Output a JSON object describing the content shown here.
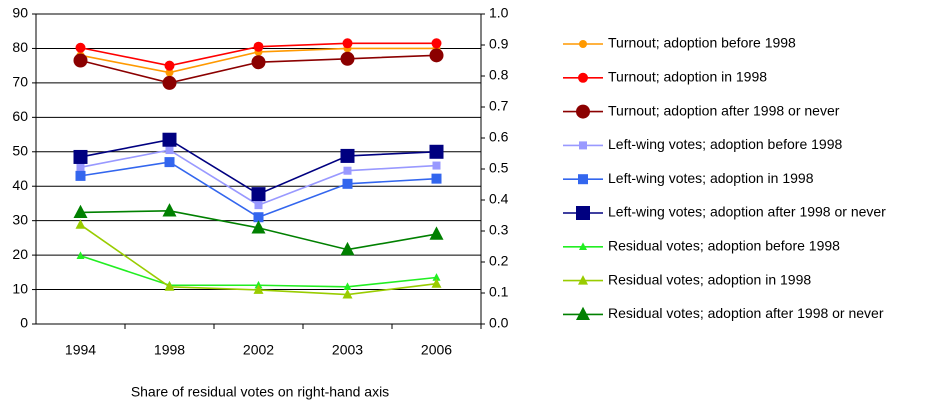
{
  "chart_data": {
    "type": "line",
    "categories": [
      "1994",
      "1998",
      "2002",
      "2003",
      "2006"
    ],
    "note": "Share of residual votes on right-hand axis",
    "ylim": [
      0,
      90
    ],
    "yticks": [
      0,
      10,
      20,
      30,
      40,
      50,
      60,
      70,
      80,
      90
    ],
    "y2lim": [
      0,
      1
    ],
    "y2ticks": [
      {
        "value": 0,
        "label": "0.0"
      },
      0.1,
      0.2,
      0.3,
      0.4,
      0.5,
      0.6,
      0.7,
      0.8,
      0.9,
      {
        "value": 1,
        "label": "1.0"
      }
    ],
    "grid": true,
    "legend": "right",
    "series": [
      {
        "name": "Turnout; adoption before 1998",
        "color": "#ff9900",
        "marker": "circle",
        "values": [
          78,
          73,
          79,
          80,
          80
        ]
      },
      {
        "name": "Turnout; adoption in 1998",
        "color": "#ff0000",
        "marker": "circle",
        "values": [
          80.2,
          75,
          80.5,
          81.5,
          81.5
        ]
      },
      {
        "name": "Turnout; adoption after 1998 or never",
        "color": "#8b0000",
        "marker": "circle",
        "values": [
          76.5,
          70,
          76,
          77,
          78
        ]
      },
      {
        "name": "Left-wing votes; adoption before 1998",
        "color": "#9999ff",
        "marker": "square",
        "values": [
          45.5,
          50.5,
          34.5,
          44.5,
          46
        ]
      },
      {
        "name": "Left-wing votes; adoption in 1998",
        "color": "#3366ee",
        "marker": "square",
        "values": [
          43,
          47,
          31,
          40.7,
          42.2
        ]
      },
      {
        "name": "Left-wing votes; adoption after 1998 or never",
        "color": "#000080",
        "marker": "square",
        "values": [
          48.5,
          53.5,
          37.7,
          48.8,
          50
        ]
      },
      {
        "name": "Residual votes; adoption before 1998",
        "color": "#22ee22",
        "marker": "triangle",
        "axis": "y2",
        "values": [
          0.22,
          0.125,
          0.125,
          0.12,
          0.15
        ]
      },
      {
        "name": "Residual votes; adoption in 1998",
        "color": "#99cc00",
        "marker": "triangle",
        "axis": "y2",
        "values": [
          0.32,
          0.12,
          0.11,
          0.095,
          0.13
        ]
      },
      {
        "name": "Residual votes; adoption after 1998 or never",
        "color": "#008000",
        "marker": "triangle",
        "axis": "y2",
        "values": [
          0.36,
          0.365,
          0.31,
          0.24,
          0.29
        ]
      }
    ]
  }
}
